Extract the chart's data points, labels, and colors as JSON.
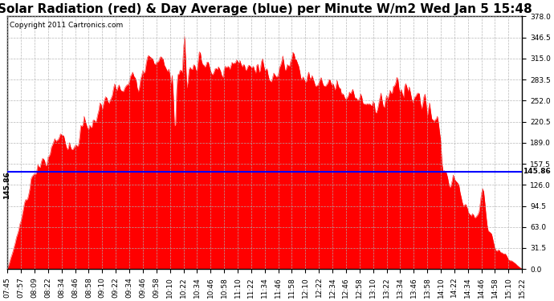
{
  "title": "Solar Radiation (red) & Day Average (blue) per Minute W/m2 Wed Jan 5 15:48",
  "copyright": "Copyright 2011 Cartronics.com",
  "ymax": 378.0,
  "ymin": 0.0,
  "yticks": [
    0.0,
    31.5,
    63.0,
    94.5,
    126.0,
    157.5,
    189.0,
    220.5,
    252.0,
    283.5,
    315.0,
    346.5,
    378.0
  ],
  "average_line": 145.86,
  "average_label": "145.86",
  "fill_color": "#ff0000",
  "line_color": "#0000ff",
  "background_color": "#ffffff",
  "grid_color": "#b0b0b0",
  "xtick_labels": [
    "07:45",
    "07:57",
    "08:09",
    "08:22",
    "08:34",
    "08:46",
    "08:58",
    "09:10",
    "09:22",
    "09:34",
    "09:46",
    "09:58",
    "10:10",
    "10:22",
    "10:34",
    "10:46",
    "10:58",
    "11:10",
    "11:22",
    "11:34",
    "11:46",
    "11:58",
    "12:10",
    "12:22",
    "12:34",
    "12:46",
    "12:58",
    "13:10",
    "13:22",
    "13:34",
    "13:46",
    "13:58",
    "14:10",
    "14:22",
    "14:34",
    "14:46",
    "14:58",
    "15:10",
    "15:22"
  ],
  "title_fontsize": 11,
  "tick_fontsize": 6.5,
  "copyright_fontsize": 6.5
}
